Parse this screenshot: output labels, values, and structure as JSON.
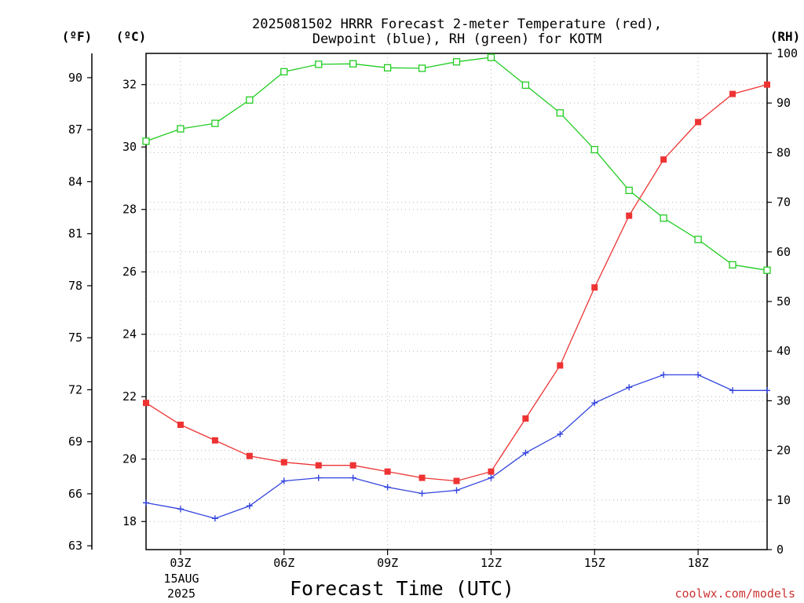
{
  "chart_data": {
    "type": "line",
    "title_line1": "2025081502 HRRR Forecast 2-meter Temperature (red),",
    "title_line2": "Dewpoint (blue), RH (green) for KOTM",
    "xlabel": "Forecast Time (UTC)",
    "credit": "coolwx.com/models",
    "unit_f": "(ºF)",
    "unit_c": "(ºC)",
    "unit_rh": "(RH)",
    "date_label_day": "15AUG",
    "date_label_year": "2025",
    "x_hours": [
      2,
      3,
      4,
      5,
      6,
      7,
      8,
      9,
      10,
      11,
      12,
      13,
      14,
      15,
      16,
      17,
      18,
      19,
      20
    ],
    "x_ticks": [
      {
        "hour": 3,
        "label": "03Z"
      },
      {
        "hour": 6,
        "label": "06Z"
      },
      {
        "hour": 9,
        "label": "09Z"
      },
      {
        "hour": 12,
        "label": "12Z"
      },
      {
        "hour": 15,
        "label": "15Z"
      },
      {
        "hour": 18,
        "label": "18Z"
      }
    ],
    "xlim": [
      2,
      20
    ],
    "ylim_c": [
      17.1,
      33.0
    ],
    "ylim_rh": [
      0,
      100
    ],
    "y_ticks_c": [
      18,
      20,
      22,
      24,
      26,
      28,
      30,
      32
    ],
    "y_ticks_f": [
      63,
      66,
      69,
      72,
      75,
      78,
      81,
      84,
      87,
      90
    ],
    "y_ticks_rh": [
      0,
      10,
      20,
      30,
      40,
      50,
      60,
      70,
      80,
      90,
      100
    ],
    "grid": true,
    "series": [
      {
        "key": "temperature",
        "color": "#ee3333",
        "marker": "square-filled",
        "values": [
          21.8,
          21.1,
          20.6,
          20.1,
          19.9,
          19.8,
          19.8,
          19.6,
          19.4,
          19.3,
          19.6,
          21.3,
          23.0,
          25.5,
          27.8,
          29.6,
          30.8,
          31.7,
          32.0
        ]
      },
      {
        "key": "dewpoint",
        "color": "#3344dd",
        "marker": "plus",
        "values": [
          18.6,
          18.4,
          18.1,
          18.5,
          19.3,
          19.4,
          19.4,
          19.1,
          18.9,
          19.0,
          19.4,
          20.2,
          20.8,
          21.8,
          22.3,
          22.7,
          22.7,
          22.2,
          22.2
        ]
      },
      {
        "key": "rh",
        "color": "#22cc22",
        "marker": "square-open",
        "axis": "rh",
        "values": [
          82.3,
          84.8,
          85.9,
          90.6,
          96.3,
          97.8,
          97.9,
          97.1,
          97.0,
          98.3,
          99.2,
          93.6,
          88.0,
          80.6,
          72.4,
          66.8,
          62.5,
          57.4,
          56.3
        ]
      }
    ]
  }
}
